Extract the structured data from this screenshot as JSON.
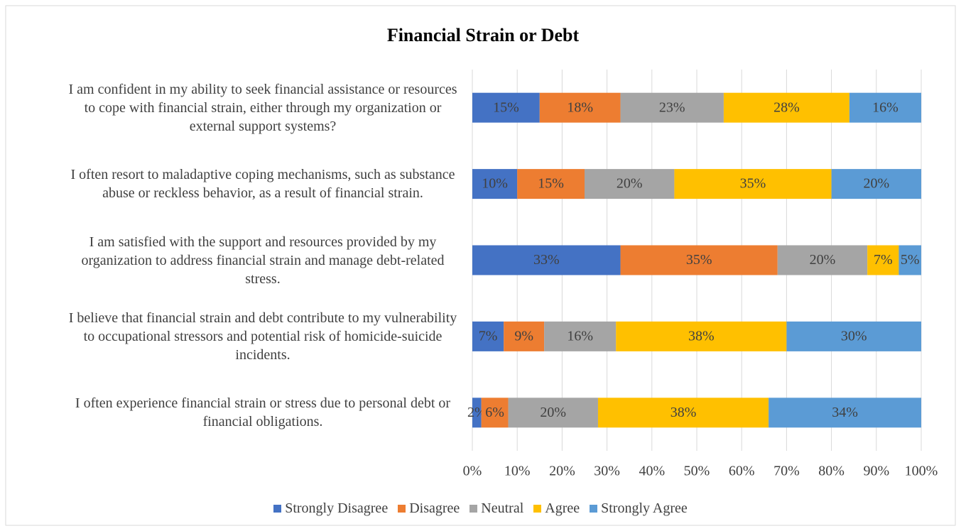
{
  "chart_data": {
    "type": "stacked_bar_horizontal",
    "title": "Financial Strain or Debt",
    "categories": [
      "I am confident in my ability to seek financial assistance or resources to cope with financial strain, either through my organization or external support systems?",
      "I often resort to maladaptive coping mechanisms, such as substance abuse or reckless behavior, as a result of financial strain.",
      "I am satisfied with the support and resources provided by my organization to address financial strain and manage debt-related stress.",
      "I believe that financial strain and debt contribute to my vulnerability to occupational stressors and potential risk of homicide-suicide incidents.",
      "I often experience financial strain or stress due to personal debt or financial obligations."
    ],
    "series": [
      {
        "name": "Strongly Disagree",
        "color": "#4472c4",
        "values": [
          15,
          10,
          33,
          7,
          2
        ],
        "value_labels": [
          "15%",
          "10%",
          "33%",
          "7%",
          "2%"
        ]
      },
      {
        "name": "Disagree",
        "color": "#ed7d31",
        "values": [
          18,
          15,
          35,
          9,
          6
        ],
        "value_labels": [
          "18%",
          "15%",
          "35%",
          "9%",
          "6%"
        ]
      },
      {
        "name": "Neutral",
        "color": "#a5a5a5",
        "values": [
          23,
          20,
          20,
          16,
          20
        ],
        "value_labels": [
          "23%",
          "20%",
          "20%",
          "16%",
          "20%"
        ]
      },
      {
        "name": "Agree",
        "color": "#ffc000",
        "values": [
          28,
          35,
          7,
          38,
          38
        ],
        "value_labels": [
          "28%",
          "35%",
          "7%",
          "38%",
          "38%"
        ]
      },
      {
        "name": "Strongly Agree",
        "color": "#5b9bd5",
        "values": [
          16,
          20,
          5,
          30,
          34
        ],
        "value_labels": [
          "16%",
          "20%",
          "5%",
          "30%",
          "34%"
        ]
      }
    ],
    "xlim": [
      0,
      100
    ],
    "xticks": [
      {
        "value": 0,
        "label": "0%"
      },
      {
        "value": 10,
        "label": "10%"
      },
      {
        "value": 20,
        "label": "20%"
      },
      {
        "value": 30,
        "label": "30%"
      },
      {
        "value": 40,
        "label": "40%"
      },
      {
        "value": 50,
        "label": "50%"
      },
      {
        "value": 60,
        "label": "60%"
      },
      {
        "value": 70,
        "label": "70%"
      },
      {
        "value": 80,
        "label": "80%"
      },
      {
        "value": 90,
        "label": "90%"
      },
      {
        "value": 100,
        "label": "100%"
      }
    ],
    "grid": true,
    "legend": "bottom"
  }
}
